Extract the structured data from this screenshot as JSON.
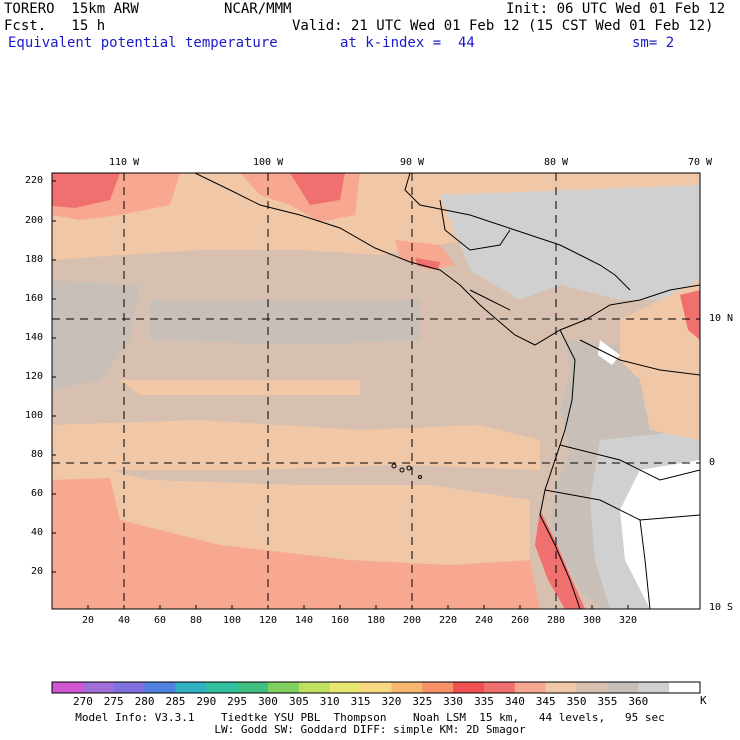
{
  "header": {
    "model": "TORERO  15km ARW",
    "source": "NCAR/MMM",
    "init": "Init: 06 UTC Wed 01 Feb 12",
    "fcst": "Fcst.   15 h",
    "valid": "Valid: 21 UTC Wed 01 Feb 12 (15 CST Wed 01 Feb 12)",
    "field": "Equivalent potential temperature",
    "level": "at k-index =  44",
    "smooth": "sm= 2"
  },
  "map": {
    "top_axis": [
      "110 W",
      "100 W",
      "90 W",
      "80 W",
      "70 W"
    ],
    "right_axis": [
      "10 N",
      "0",
      "10 S"
    ],
    "left_axis": [
      "220",
      "200",
      "180",
      "160",
      "140",
      "120",
      "100",
      "80",
      "60",
      "40",
      "20"
    ],
    "bottom_axis": [
      "20",
      "40",
      "60",
      "80",
      "100",
      "120",
      "140",
      "160",
      "180",
      "200",
      "220",
      "240",
      "260",
      "280",
      "300",
      "320"
    ]
  },
  "colorbar": {
    "labels": [
      "270",
      "275",
      "280",
      "285",
      "290",
      "295",
      "300",
      "305",
      "310",
      "315",
      "320",
      "325",
      "330",
      "335",
      "340",
      "345",
      "350",
      "355",
      "360"
    ],
    "unit": "K",
    "colors": [
      "#d055d0",
      "#a070d8",
      "#8070e0",
      "#5080e0",
      "#30b0c0",
      "#30c0a0",
      "#40c080",
      "#80d060",
      "#c0e060",
      "#e8e870",
      "#f8d880",
      "#f8b870",
      "#f89068",
      "#f05050",
      "#f07070",
      "#f8a890",
      "#f0c8a8",
      "#d8c0b0",
      "#c8c0b8",
      "#d0d0d0",
      "#ffffff"
    ]
  },
  "footer": {
    "line1": "Model Info: V3.3.1    Tiedtke YSU PBL  Thompson    Noah LSM  15 km,   44 levels,   95 sec",
    "line2": "LW: Godd SW: Goddard DIFF: simple KM: 2D Smagor"
  }
}
